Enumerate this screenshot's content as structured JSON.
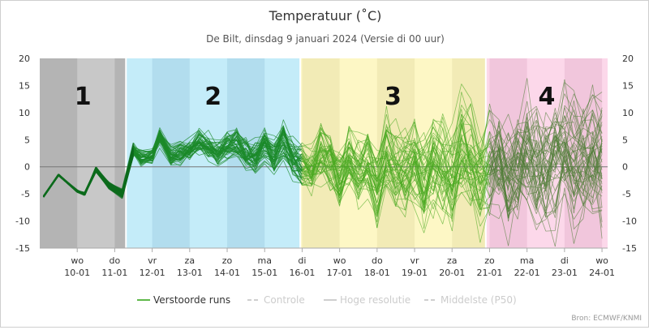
{
  "chart_data": {
    "type": "line",
    "title": "Temperatuur (˚C)",
    "subtitle": "De Bilt, dinsdag 9 januari 2024 (Versie di 00 uur)",
    "source": "Bron: ECMWF/KNMI",
    "ylim": [
      -15,
      20
    ],
    "y_ticks": [
      20,
      15,
      10,
      5,
      0,
      -5,
      -10,
      -15
    ],
    "xlim": [
      -1.0,
      14.15
    ],
    "x_ticks": [
      {
        "x": 0,
        "day": "wo",
        "date": "10-01"
      },
      {
        "x": 1,
        "day": "do",
        "date": "11-01"
      },
      {
        "x": 2,
        "day": "vr",
        "date": "12-01"
      },
      {
        "x": 3,
        "day": "za",
        "date": "13-01"
      },
      {
        "x": 4,
        "day": "zo",
        "date": "14-01"
      },
      {
        "x": 5,
        "day": "ma",
        "date": "15-01"
      },
      {
        "x": 6,
        "day": "di",
        "date": "16-01"
      },
      {
        "x": 7,
        "day": "wo",
        "date": "17-01"
      },
      {
        "x": 8,
        "day": "do",
        "date": "18-01"
      },
      {
        "x": 9,
        "day": "vr",
        "date": "19-01"
      },
      {
        "x": 10,
        "day": "za",
        "date": "20-01"
      },
      {
        "x": 11,
        "day": "zo",
        "date": "21-01"
      },
      {
        "x": 12,
        "day": "ma",
        "date": "22-01"
      },
      {
        "x": 13,
        "day": "di",
        "date": "23-01"
      },
      {
        "x": 14,
        "day": "wo",
        "date": "24-01"
      }
    ],
    "periods": [
      {
        "label": "1",
        "from": -1.0,
        "to": 1.3,
        "color": "#c8c8c8",
        "shade": "#b4b4b4"
      },
      {
        "label": "2",
        "from": 1.3,
        "to": 5.95,
        "color": "#c4ecf9",
        "shade": "#b2ddee"
      },
      {
        "label": "3",
        "from": 5.95,
        "to": 10.9,
        "color": "#fdf7c5",
        "shade": "#f2ebb6"
      },
      {
        "label": "4",
        "from": 10.9,
        "to": 14.15,
        "color": "#fcd8ea",
        "shade": "#f1c6dc"
      }
    ],
    "legend": [
      {
        "name": "Verstoorde runs",
        "color": "#5fb84a",
        "style": "solid"
      },
      {
        "name": "Controle",
        "color": "#cfcfcf",
        "style": "dashed"
      },
      {
        "name": "Hoge resolutie",
        "color": "#cfcfcf",
        "style": "solid"
      },
      {
        "name": "Middelste (P50)",
        "color": "#cfcfcf",
        "style": "dashed"
      }
    ],
    "colors": {
      "early": "#0c6b1c",
      "mid": "#1b8a2a",
      "late": "#48a820",
      "far": "#4f7d35"
    },
    "ensemble": {
      "members": 51,
      "x": [
        -0.9,
        -0.5,
        0,
        0.2,
        0.5,
        0.85,
        1.2,
        1.5,
        1.7,
        2.0,
        2.2,
        2.5,
        2.75,
        3.0,
        3.25,
        3.5,
        3.75,
        4.0,
        4.25,
        4.5,
        4.75,
        5.0,
        5.25,
        5.5,
        5.75,
        6.0,
        6.25,
        6.5,
        6.75,
        7.0,
        7.25,
        7.5,
        7.75,
        8.0,
        8.25,
        8.5,
        8.75,
        9.0,
        9.25,
        9.5,
        9.75,
        10.0,
        10.25,
        10.5,
        10.75,
        11.0,
        11.25,
        11.5,
        11.75,
        12.0,
        12.25,
        12.5,
        12.75,
        13.0,
        13.25,
        13.5,
        13.75,
        14.0
      ],
      "median": [
        -5.5,
        -1.5,
        -4.5,
        -5,
        -0.5,
        -3.5,
        -5,
        3,
        1.5,
        2,
        5.5,
        2,
        2.5,
        3,
        4.5,
        3.5,
        2.5,
        4,
        4.5,
        2.5,
        2,
        4,
        2,
        5,
        1.5,
        0.5,
        -0.5,
        3,
        1,
        -2,
        2,
        -1,
        0.5,
        -3,
        3,
        0,
        -1,
        2,
        -2,
        1,
        0,
        -2,
        4,
        1,
        -1,
        0.5,
        2,
        -1,
        1,
        4,
        1,
        0,
        2,
        4,
        1.5,
        2,
        3,
        2
      ],
      "spread": [
        0.1,
        0.1,
        0.15,
        0.2,
        0.3,
        0.5,
        0.6,
        0.8,
        1,
        1,
        1.2,
        1.3,
        1.4,
        1.5,
        1.6,
        1.6,
        1.7,
        1.8,
        1.9,
        2,
        2,
        2.1,
        2.2,
        2.3,
        2.5,
        2.8,
        3,
        3.5,
        3.8,
        4,
        4.2,
        4.4,
        4.6,
        4.8,
        5,
        5.2,
        5.4,
        5.5,
        5.6,
        5.7,
        5.8,
        5.9,
        6,
        6.2,
        6.3,
        6.4,
        6.5,
        6.6,
        6.7,
        6.8,
        6.9,
        7,
        7,
        7,
        7,
        7,
        7,
        7
      ]
    }
  }
}
